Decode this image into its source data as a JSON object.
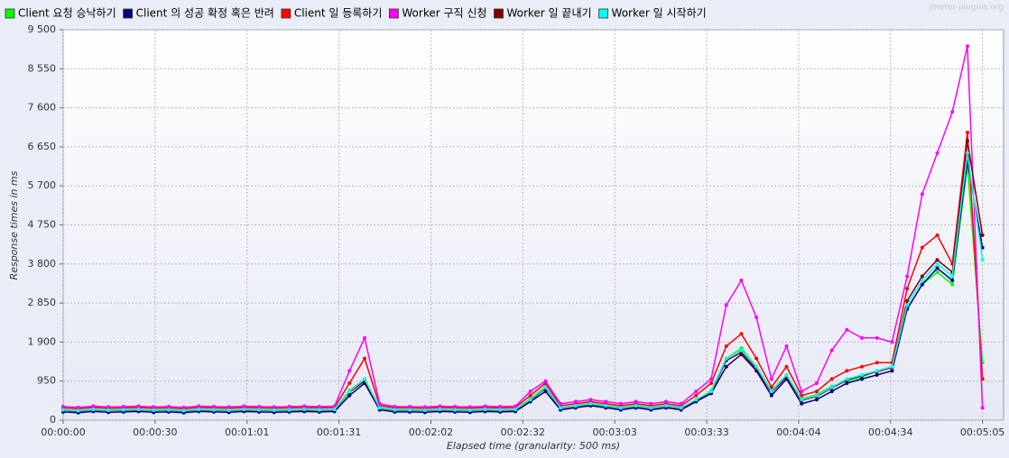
{
  "chart_data": {
    "type": "line",
    "watermark": "jmeter-plugins.org",
    "xlabel": "Elapsed time (granularity: 500 ms)",
    "ylabel": "Response times in ms",
    "xlim": [
      0,
      312
    ],
    "ylim": [
      0,
      9500
    ],
    "xticks": [
      {
        "value": 0,
        "label": "00:00:00"
      },
      {
        "value": 30.5,
        "label": "00:00:30"
      },
      {
        "value": 61,
        "label": "00:01:01"
      },
      {
        "value": 91.5,
        "label": "00:01:31"
      },
      {
        "value": 122,
        "label": "00:02:02"
      },
      {
        "value": 152.5,
        "label": "00:02:32"
      },
      {
        "value": 183,
        "label": "00:03:03"
      },
      {
        "value": 213.5,
        "label": "00:03:33"
      },
      {
        "value": 244,
        "label": "00:04:04"
      },
      {
        "value": 274.5,
        "label": "00:04:34"
      },
      {
        "value": 305,
        "label": "00:05:05"
      }
    ],
    "yticks": [
      0,
      950,
      {
        "value": 1900,
        "label": "1 900"
      },
      {
        "value": 2850,
        "label": "2 850"
      },
      {
        "value": 3800,
        "label": "3 800"
      },
      {
        "value": 4750,
        "label": "4 750"
      },
      {
        "value": 5700,
        "label": "5 700"
      },
      {
        "value": 6650,
        "label": "6 650"
      },
      {
        "value": 7600,
        "label": "7 600"
      },
      {
        "value": 8550,
        "label": "8 550"
      },
      {
        "value": 9500,
        "label": "9 500"
      }
    ],
    "grid": true,
    "legend": "top",
    "x": [
      0,
      5,
      10,
      15,
      20,
      25,
      30,
      35,
      40,
      45,
      50,
      55,
      60,
      65,
      70,
      75,
      80,
      85,
      90,
      95,
      100,
      105,
      110,
      115,
      120,
      125,
      130,
      135,
      140,
      145,
      150,
      155,
      160,
      165,
      170,
      175,
      180,
      185,
      190,
      195,
      200,
      205,
      210,
      215,
      220,
      225,
      230,
      235,
      240,
      245,
      250,
      255,
      260,
      265,
      270,
      275,
      280,
      285,
      290,
      295,
      300,
      305
    ],
    "series": [
      {
        "name": "Client 요청 승낙하기",
        "color": "#00ff00",
        "values": [
          260,
          240,
          270,
          250,
          260,
          270,
          250,
          260,
          240,
          270,
          260,
          250,
          270,
          260,
          250,
          260,
          270,
          260,
          270,
          720,
          1000,
          310,
          260,
          260,
          250,
          270,
          260,
          250,
          270,
          260,
          270,
          520,
          820,
          310,
          360,
          410,
          360,
          310,
          360,
          310,
          360,
          310,
          480,
          720,
          1500,
          1750,
          1300,
          720,
          1100,
          520,
          620,
          820,
          950,
          1050,
          1200,
          1300,
          2700,
          3300,
          3600,
          3300,
          6200,
          1400
        ]
      },
      {
        "name": "Client 의 성공 확정 혹은 반려",
        "color": "#000080",
        "values": [
          200,
          180,
          210,
          190,
          200,
          210,
          190,
          200,
          180,
          210,
          200,
          190,
          210,
          200,
          190,
          200,
          210,
          200,
          210,
          600,
          900,
          250,
          200,
          200,
          190,
          210,
          200,
          190,
          210,
          200,
          210,
          450,
          700,
          250,
          300,
          350,
          300,
          250,
          300,
          250,
          300,
          250,
          450,
          650,
          1300,
          1600,
          1200,
          600,
          1000,
          400,
          500,
          700,
          900,
          1000,
          1100,
          1200,
          2700,
          3300,
          3700,
          3400,
          6300,
          4200
        ]
      },
      {
        "name": "Client 일 등록하기",
        "color": "#ff0000",
        "values": [
          300,
          280,
          310,
          290,
          300,
          310,
          290,
          300,
          280,
          310,
          300,
          290,
          310,
          300,
          290,
          300,
          310,
          300,
          310,
          900,
          1500,
          350,
          300,
          300,
          290,
          310,
          300,
          290,
          310,
          300,
          310,
          600,
          900,
          350,
          400,
          450,
          400,
          350,
          400,
          350,
          400,
          350,
          600,
          900,
          1800,
          2100,
          1500,
          800,
          1300,
          600,
          700,
          1000,
          1200,
          1300,
          1400,
          1400,
          3200,
          4200,
          4500,
          3800,
          7000,
          1000
        ]
      },
      {
        "name": "Worker 구직 신청",
        "color": "#ff00ff",
        "values": [
          330,
          310,
          340,
          320,
          330,
          340,
          320,
          330,
          310,
          340,
          330,
          320,
          340,
          330,
          320,
          330,
          340,
          330,
          340,
          1200,
          2000,
          400,
          330,
          330,
          320,
          340,
          330,
          320,
          340,
          330,
          340,
          700,
          950,
          400,
          450,
          500,
          450,
          400,
          450,
          400,
          450,
          400,
          700,
          1000,
          2800,
          3400,
          2500,
          1000,
          1800,
          700,
          900,
          1700,
          2200,
          2000,
          2000,
          1900,
          3500,
          5500,
          6500,
          7500,
          9100,
          300
        ]
      },
      {
        "name": "Worker 일 끝내기",
        "color": "#800000",
        "values": [
          240,
          220,
          250,
          230,
          240,
          250,
          230,
          240,
          220,
          250,
          240,
          230,
          250,
          240,
          230,
          240,
          250,
          240,
          250,
          680,
          950,
          290,
          240,
          240,
          230,
          250,
          240,
          230,
          250,
          240,
          250,
          480,
          780,
          290,
          340,
          390,
          340,
          290,
          340,
          290,
          340,
          290,
          480,
          680,
          1450,
          1650,
          1250,
          680,
          1050,
          480,
          580,
          780,
          980,
          1080,
          1180,
          1280,
          2900,
          3500,
          3900,
          3600,
          6800,
          4500
        ]
      },
      {
        "name": "Worker 일 시작하기",
        "color": "#00ffff",
        "values": [
          250,
          230,
          260,
          240,
          250,
          260,
          240,
          250,
          230,
          260,
          250,
          240,
          260,
          250,
          240,
          250,
          260,
          250,
          260,
          700,
          1000,
          300,
          250,
          250,
          240,
          260,
          250,
          240,
          260,
          250,
          260,
          500,
          800,
          300,
          350,
          400,
          350,
          300,
          350,
          300,
          350,
          300,
          500,
          700,
          1500,
          1700,
          1300,
          700,
          1100,
          500,
          600,
          800,
          1000,
          1100,
          1200,
          1300,
          2800,
          3400,
          3800,
          3500,
          6500,
          3900
        ]
      }
    ]
  }
}
